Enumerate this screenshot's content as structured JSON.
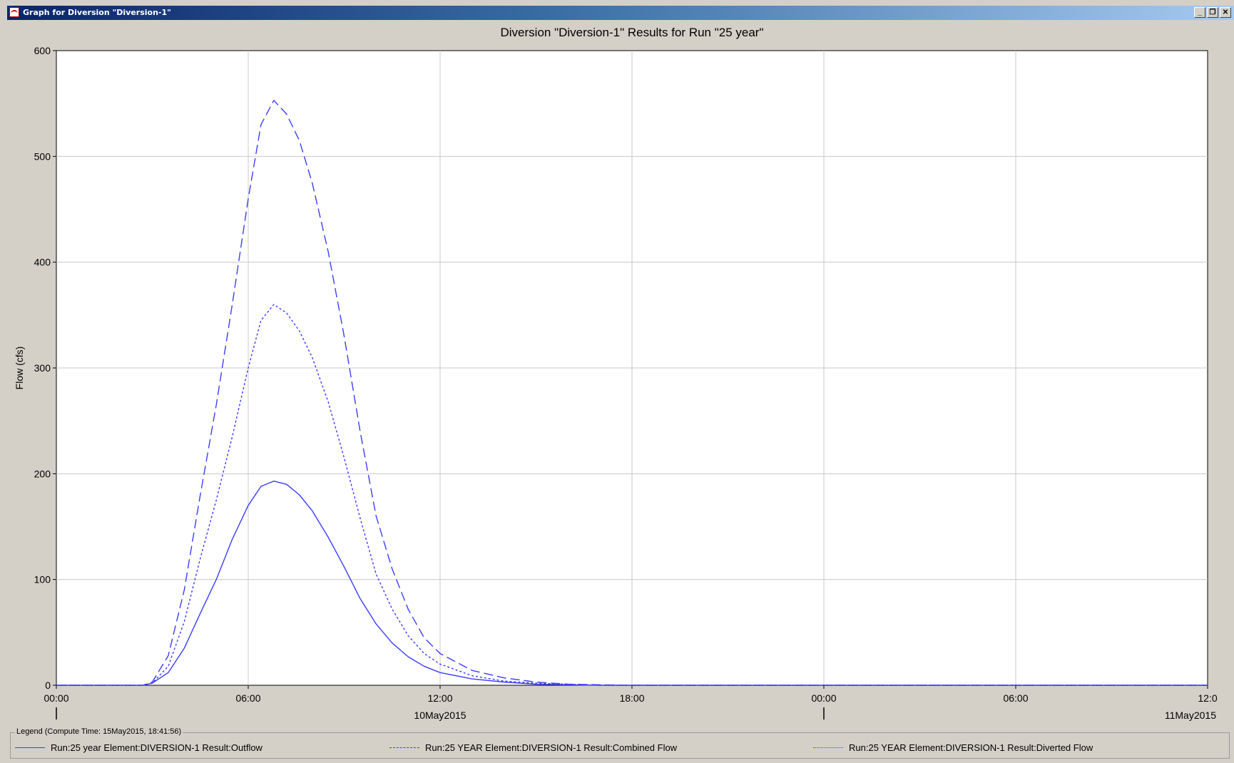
{
  "window": {
    "title": "Graph for Diversion \"Diversion-1\"",
    "minimize_label": "_",
    "restore_label": "❐",
    "close_label": "✕"
  },
  "chart_data": {
    "type": "line",
    "title": "Diversion \"Diversion-1\" Results for Run \"25 year\"",
    "xlabel": "",
    "ylabel": "Flow (cfs)",
    "ylim": [
      0,
      600
    ],
    "xlim_hours": [
      0,
      36
    ],
    "grid": true,
    "y_ticks": [
      0,
      100,
      200,
      300,
      400,
      500,
      600
    ],
    "x_ticks": [
      {
        "hour": 0,
        "label": "00:00"
      },
      {
        "hour": 6,
        "label": "06:00"
      },
      {
        "hour": 12,
        "label": "12:00"
      },
      {
        "hour": 18,
        "label": "18:00"
      },
      {
        "hour": 24,
        "label": "00:00"
      },
      {
        "hour": 30,
        "label": "06:00"
      },
      {
        "hour": 36,
        "label": "12:0"
      }
    ],
    "date_labels": [
      {
        "hour": 12,
        "label": "10May2015"
      },
      {
        "hour": 36,
        "label": "11May2015"
      }
    ],
    "date_markers_hours": [
      0,
      24
    ],
    "series": [
      {
        "name": "Run:25 year Element:DIVERSION-1 Result:Outflow",
        "style": "solid",
        "color": "#3c3cff",
        "points": [
          [
            0,
            0
          ],
          [
            2.7,
            0
          ],
          [
            3.0,
            2
          ],
          [
            3.5,
            12
          ],
          [
            4.0,
            35
          ],
          [
            4.5,
            68
          ],
          [
            5.0,
            100
          ],
          [
            5.5,
            138
          ],
          [
            6.0,
            170
          ],
          [
            6.4,
            188
          ],
          [
            6.8,
            193
          ],
          [
            7.2,
            190
          ],
          [
            7.6,
            180
          ],
          [
            8.0,
            165
          ],
          [
            8.5,
            140
          ],
          [
            9.0,
            112
          ],
          [
            9.5,
            82
          ],
          [
            10.0,
            58
          ],
          [
            10.5,
            40
          ],
          [
            11.0,
            27
          ],
          [
            11.5,
            18
          ],
          [
            12.0,
            12
          ],
          [
            13.0,
            6
          ],
          [
            14.0,
            3
          ],
          [
            15.0,
            1
          ],
          [
            16.0,
            0.5
          ],
          [
            17.0,
            0
          ],
          [
            36,
            0
          ]
        ]
      },
      {
        "name": "Run:25 YEAR Element:DIVERSION-1 Result:Combined Flow",
        "style": "dashed",
        "color": "#3c3cff",
        "points": [
          [
            0,
            0
          ],
          [
            2.7,
            0
          ],
          [
            3.0,
            3
          ],
          [
            3.5,
            28
          ],
          [
            4.0,
            90
          ],
          [
            4.5,
            180
          ],
          [
            5.0,
            265
          ],
          [
            5.5,
            360
          ],
          [
            6.0,
            460
          ],
          [
            6.4,
            530
          ],
          [
            6.8,
            553
          ],
          [
            7.2,
            540
          ],
          [
            7.6,
            515
          ],
          [
            8.0,
            475
          ],
          [
            8.5,
            410
          ],
          [
            9.0,
            330
          ],
          [
            9.5,
            240
          ],
          [
            10.0,
            160
          ],
          [
            10.5,
            110
          ],
          [
            11.0,
            72
          ],
          [
            11.5,
            45
          ],
          [
            12.0,
            30
          ],
          [
            13.0,
            14
          ],
          [
            14.0,
            7
          ],
          [
            15.0,
            3
          ],
          [
            16.0,
            1
          ],
          [
            17.0,
            0.5
          ],
          [
            18.0,
            0
          ],
          [
            36,
            0
          ]
        ]
      },
      {
        "name": "Run:25 YEAR Element:DIVERSION-1 Result:Diverted Flow",
        "style": "dotted",
        "color": "#3c3cff",
        "points": [
          [
            0,
            0
          ],
          [
            2.7,
            0
          ],
          [
            3.0,
            2
          ],
          [
            3.5,
            18
          ],
          [
            4.0,
            60
          ],
          [
            4.5,
            120
          ],
          [
            5.0,
            175
          ],
          [
            5.5,
            235
          ],
          [
            6.0,
            300
          ],
          [
            6.4,
            345
          ],
          [
            6.8,
            360
          ],
          [
            7.2,
            352
          ],
          [
            7.6,
            335
          ],
          [
            8.0,
            310
          ],
          [
            8.5,
            268
          ],
          [
            9.0,
            215
          ],
          [
            9.5,
            158
          ],
          [
            10.0,
            105
          ],
          [
            10.5,
            72
          ],
          [
            11.0,
            47
          ],
          [
            11.5,
            30
          ],
          [
            12.0,
            20
          ],
          [
            13.0,
            9
          ],
          [
            14.0,
            4
          ],
          [
            15.0,
            2
          ],
          [
            16.0,
            1
          ],
          [
            17.0,
            0
          ],
          [
            36,
            0
          ]
        ]
      }
    ]
  },
  "legend": {
    "title": "Legend (Compute Time: 15May2015, 18:41:56)"
  }
}
